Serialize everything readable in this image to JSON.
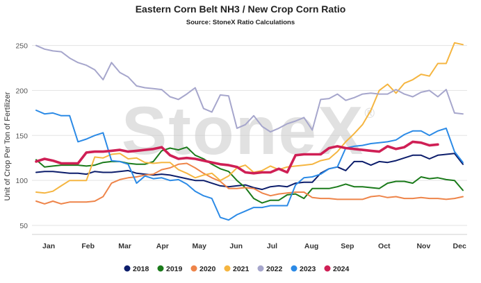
{
  "chart_data": {
    "type": "line",
    "title": "Eastern Corn Belt NH3 / New Crop Corn Ratio",
    "subtitle": "Source: StoneX Ratio Calculations",
    "ylabel": "Unit of Crop Per Ton of Fertilizer",
    "xlabel": "",
    "watermark": "StoneX",
    "watermark_mark": "®",
    "ylim": [
      40,
      262
    ],
    "yticks": [
      50,
      100,
      150,
      200,
      250
    ],
    "xlim": [
      0.5,
      52.5
    ],
    "grid": "horizontal",
    "legend_position": "bottom",
    "months": [
      {
        "label": "Jan",
        "week": 2.5
      },
      {
        "label": "Feb",
        "week": 7.2
      },
      {
        "label": "Mar",
        "week": 11.6
      },
      {
        "label": "Apr",
        "week": 16.1
      },
      {
        "label": "May",
        "week": 20.5
      },
      {
        "label": "Jun",
        "week": 24.9
      },
      {
        "label": "Jul",
        "week": 29.2
      },
      {
        "label": "Aug",
        "week": 33.9
      },
      {
        "label": "Sep",
        "week": 38.2
      },
      {
        "label": "Oct",
        "week": 42.6
      },
      {
        "label": "Nov",
        "week": 47.3
      },
      {
        "label": "Dec",
        "week": 51.6
      }
    ],
    "series": [
      {
        "name": "2018",
        "color": "#0c1d6b",
        "x": [
          1,
          2,
          3,
          4,
          5,
          6,
          7,
          8,
          9,
          10,
          11,
          12,
          13,
          14,
          15,
          16,
          17,
          18,
          19,
          20,
          21,
          22,
          23,
          24,
          25,
          26,
          27,
          28,
          29,
          30,
          31,
          32,
          33,
          34,
          35,
          36,
          37,
          38,
          39,
          40,
          41,
          42,
          43,
          44,
          45,
          46,
          47,
          48,
          49,
          50,
          51,
          52
        ],
        "values": [
          109,
          110,
          110,
          109,
          108,
          108,
          107,
          110,
          109,
          109,
          110,
          111,
          108,
          107,
          106,
          107,
          106,
          104,
          102,
          100,
          100,
          97,
          94,
          93,
          94,
          95,
          92,
          90,
          93,
          94,
          93,
          97,
          98,
          98,
          108,
          113,
          115,
          111,
          121,
          121,
          117,
          121,
          120,
          122,
          125,
          128,
          128,
          124,
          128,
          129,
          130,
          118
        ]
      },
      {
        "name": "2019",
        "color": "#1a7a1a",
        "x": [
          1,
          2,
          3,
          4,
          5,
          6,
          7,
          8,
          9,
          10,
          11,
          12,
          13,
          14,
          15,
          16,
          17,
          18,
          19,
          20,
          21,
          22,
          23,
          24,
          25,
          26,
          27,
          28,
          29,
          30,
          31,
          32,
          33,
          34,
          35,
          36,
          37,
          38,
          39,
          40,
          41,
          42,
          43,
          44,
          45,
          46,
          47,
          48,
          49,
          50,
          51,
          52
        ],
        "values": [
          123,
          115,
          116,
          117,
          117,
          117,
          116,
          117,
          120,
          121,
          121,
          119,
          118,
          118,
          121,
          133,
          136,
          134,
          137,
          128,
          124,
          118,
          113,
          110,
          100,
          92,
          80,
          75,
          78,
          78,
          84,
          85,
          80,
          91,
          91,
          91,
          93,
          96,
          93,
          93,
          92,
          91,
          97,
          99,
          99,
          97,
          104,
          102,
          103,
          101,
          100,
          89
        ]
      },
      {
        "name": "2020",
        "color": "#ee8449",
        "x": [
          1,
          2,
          3,
          4,
          5,
          6,
          7,
          8,
          9,
          10,
          11,
          12,
          13,
          14,
          15,
          16,
          17,
          18,
          19,
          20,
          21,
          22,
          23,
          24,
          25,
          26,
          27,
          28,
          29,
          30,
          31,
          32,
          33,
          34,
          35,
          36,
          37,
          38,
          39,
          40,
          41,
          42,
          43,
          44,
          45,
          46,
          47,
          48,
          49,
          50,
          51,
          52
        ],
        "values": [
          77,
          74,
          77,
          74,
          76,
          76,
          76,
          77,
          82,
          97,
          101,
          103,
          104,
          106,
          107,
          112,
          114,
          118,
          119,
          114,
          108,
          103,
          99,
          91,
          91,
          92,
          91,
          86,
          83,
          85,
          86,
          87,
          87,
          81,
          80,
          80,
          79,
          79,
          79,
          79,
          82,
          83,
          81,
          82,
          80,
          80,
          81,
          80,
          80,
          79,
          80,
          82
        ]
      },
      {
        "name": "2021",
        "color": "#f5b540",
        "x": [
          1,
          2,
          3,
          4,
          5,
          6,
          7,
          8,
          9,
          10,
          11,
          12,
          13,
          14,
          15,
          16,
          17,
          18,
          19,
          20,
          21,
          22,
          23,
          24,
          25,
          26,
          27,
          28,
          29,
          30,
          31,
          32,
          33,
          34,
          35,
          36,
          37,
          38,
          39,
          40,
          41,
          42,
          43,
          44,
          45,
          46,
          47,
          48,
          49,
          50,
          51,
          52
        ],
        "values": [
          87,
          86,
          88,
          94,
          100,
          100,
          100,
          126,
          125,
          129,
          130,
          124,
          125,
          120,
          119,
          120,
          120,
          112,
          108,
          103,
          106,
          108,
          100,
          105,
          114,
          117,
          109,
          111,
          116,
          112,
          115,
          116,
          117,
          118,
          122,
          124,
          132,
          143,
          152,
          162,
          178,
          200,
          207,
          197,
          208,
          212,
          218,
          216,
          230,
          230,
          253,
          251
        ]
      },
      {
        "name": "2022",
        "color": "#a6a6cc",
        "x": [
          1,
          2,
          3,
          4,
          5,
          6,
          7,
          8,
          9,
          10,
          11,
          12,
          13,
          14,
          15,
          16,
          17,
          18,
          19,
          20,
          21,
          22,
          23,
          24,
          25,
          26,
          27,
          28,
          29,
          30,
          31,
          32,
          33,
          34,
          35,
          36,
          37,
          38,
          39,
          40,
          41,
          42,
          43,
          44,
          45,
          46,
          47,
          48,
          49,
          50,
          51,
          52
        ],
        "values": [
          250,
          246,
          244,
          243,
          236,
          231,
          228,
          223,
          212,
          231,
          220,
          215,
          205,
          203,
          202,
          201,
          193,
          190,
          196,
          203,
          180,
          176,
          195,
          194,
          158,
          162,
          172,
          160,
          154,
          158,
          163,
          166,
          170,
          156,
          190,
          191,
          196,
          189,
          192,
          196,
          197,
          196,
          196,
          201,
          196,
          193,
          198,
          200,
          193,
          201,
          175,
          174
        ]
      },
      {
        "name": "2023",
        "color": "#2b8ae6",
        "x": [
          1,
          2,
          3,
          4,
          5,
          6,
          7,
          8,
          9,
          10,
          11,
          12,
          13,
          14,
          15,
          16,
          17,
          18,
          19,
          20,
          21,
          22,
          23,
          24,
          25,
          26,
          27,
          28,
          29,
          30,
          31,
          32,
          33,
          34,
          35,
          36,
          37,
          38,
          39,
          40,
          41,
          42,
          43,
          44,
          45,
          46,
          47,
          48,
          49,
          50,
          51,
          52
        ],
        "values": [
          178,
          174,
          175,
          172,
          172,
          143,
          146,
          150,
          153,
          122,
          121,
          118,
          97,
          105,
          102,
          103,
          100,
          101,
          96,
          88,
          83,
          80,
          59,
          56,
          62,
          66,
          70,
          70,
          72,
          72,
          72,
          95,
          103,
          104,
          107,
          113,
          115,
          136,
          138,
          139,
          141,
          142,
          143,
          145,
          151,
          155,
          155,
          150,
          155,
          158,
          132,
          120
        ]
      },
      {
        "name": "2024",
        "color": "#cf1f55",
        "x": [
          1,
          2,
          3,
          4,
          5,
          6,
          7,
          8,
          9,
          10,
          11,
          12,
          13,
          14,
          15,
          16,
          17,
          18,
          19,
          20,
          21,
          22,
          23,
          24,
          25,
          26,
          27,
          28,
          29,
          30,
          31,
          32,
          33,
          34,
          35,
          36,
          37,
          38,
          39,
          40,
          41,
          42,
          43,
          44,
          45,
          46,
          47,
          48,
          49
        ],
        "values": [
          121,
          124,
          122,
          119,
          119,
          119,
          131,
          132,
          132,
          133,
          134,
          132,
          133,
          134,
          135,
          137,
          128,
          124,
          125,
          124,
          122,
          120,
          118,
          117,
          115,
          109,
          108,
          109,
          109,
          113,
          109,
          128,
          129,
          129,
          129,
          136,
          138,
          136,
          135,
          134,
          133,
          132,
          138,
          135,
          137,
          143,
          142,
          139,
          140
        ]
      }
    ]
  }
}
